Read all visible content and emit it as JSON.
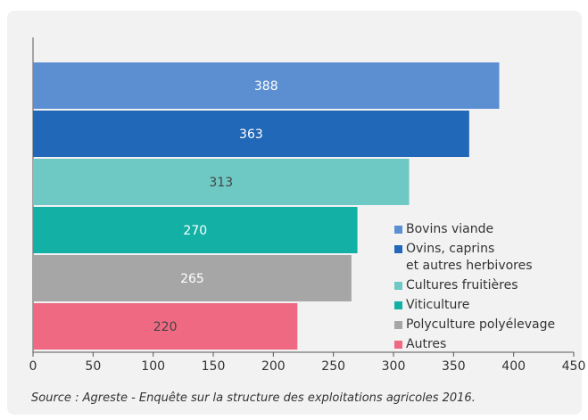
{
  "chart_data": {
    "type": "bar",
    "orientation": "horizontal",
    "categories": [
      "Bovins viande",
      "Ovins, caprins\net autres herbivores",
      "Cultures fruitières",
      "Viticulture",
      "Polyculture polyélevage",
      "Autres"
    ],
    "values": [
      388,
      363,
      313,
      270,
      265,
      220
    ],
    "colors": [
      "#5b8fd1",
      "#2268b8",
      "#6ec8c4",
      "#13b1a5",
      "#a6a6a6",
      "#ef6982"
    ],
    "label_colors": [
      "#ffffff",
      "#ffffff",
      "#444444",
      "#ffffff",
      "#ffffff",
      "#444444"
    ],
    "xlim": [
      0,
      450
    ],
    "xticks": [
      0,
      50,
      100,
      150,
      200,
      250,
      300,
      350,
      400,
      450
    ],
    "legend": "lower right",
    "source": "Source : Agreste - Enquête sur la structure des exploitations agricoles 2016."
  }
}
